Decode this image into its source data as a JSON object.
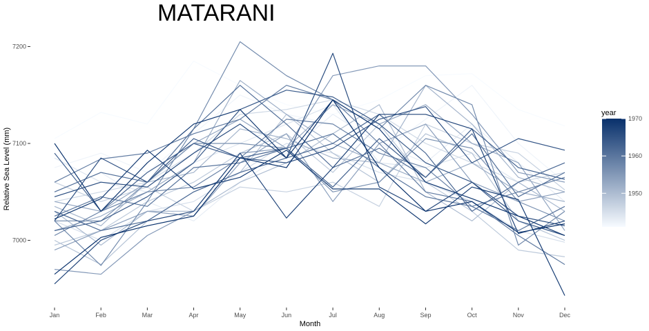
{
  "chart_data": {
    "type": "line",
    "title": "MATARANI",
    "xlabel": "Month",
    "ylabel": "Relative Sea Level (mm)",
    "categories": [
      "Jan",
      "Feb",
      "Mar",
      "Apr",
      "May",
      "Jun",
      "Jul",
      "Aug",
      "Sep",
      "Oct",
      "Nov",
      "Dec"
    ],
    "yticks": [
      7000,
      7100,
      7200
    ],
    "ylim": [
      6935,
      7225
    ],
    "grid": false,
    "legend": {
      "title": "year",
      "position": "right",
      "type": "colorbar",
      "range": [
        1941,
        1970
      ],
      "ticks": [
        1950,
        1960,
        1970
      ],
      "colors": [
        "#f7fbff",
        "#08306b"
      ]
    },
    "series": [
      {
        "year": 1941,
        "values": [
          7105,
          7132,
          7120,
          7185,
          7160,
          7140,
          7130,
          7145,
          7170,
          7172,
          7135,
          7118
        ]
      },
      {
        "year": 1942,
        "values": [
          7075,
          7090,
          7070,
          7110,
          7150,
          7130,
          7120,
          7090,
          7125,
          7160,
          7100,
          7060
        ]
      },
      {
        "year": 1943,
        "values": [
          7050,
          7070,
          7040,
          7020,
          7060,
          7090,
          7130,
          7100,
          7080,
          7120,
          7080,
          7040
        ]
      },
      {
        "year": 1944,
        "values": [
          7085,
          7060,
          7050,
          7080,
          7100,
          7120,
          7140,
          7080,
          7075,
          7090,
          7060,
          7030
        ]
      },
      {
        "year": 1945,
        "values": [
          7020,
          7000,
          7030,
          7040,
          7070,
          7100,
          7090,
          7070,
          7060,
          7040,
          7010,
          6998
        ]
      },
      {
        "year": 1946,
        "values": [
          7040,
          7050,
          7060,
          7090,
          7130,
          7135,
          7145,
          7130,
          7100,
          7080,
          7060,
          7070
        ]
      },
      {
        "year": 1947,
        "values": [
          7060,
          7040,
          7055,
          7030,
          7055,
          7050,
          7060,
          7035,
          7120,
          7100,
          7090,
          7052
        ]
      },
      {
        "year": 1948,
        "values": [
          6995,
          7010,
          7040,
          7060,
          7090,
          7110,
          7070,
          7120,
          7060,
          7030,
          6990,
          6983
        ]
      },
      {
        "year": 1949,
        "values": [
          7000,
          6975,
          7020,
          7050,
          7070,
          7130,
          7090,
          7060,
          7110,
          7090,
          7020,
          7000
        ]
      },
      {
        "year": 1950,
        "values": [
          7030,
          6995,
          7030,
          7030,
          7060,
          7080,
          7110,
          7140,
          7050,
          7020,
          7060,
          7030
        ]
      },
      {
        "year": 1951,
        "values": [
          7035,
          7015,
          7060,
          7070,
          7115,
          7105,
          7085,
          7080,
          7160,
          7120,
          7065,
          7050
        ]
      },
      {
        "year": 1952,
        "values": [
          7010,
          7025,
          7050,
          7080,
          7165,
          7130,
          7100,
          7080,
          7060,
          7080,
          7050,
          7040
        ]
      },
      {
        "year": 1953,
        "values": [
          7040,
          7030,
          7060,
          7100,
          7125,
          7095,
          7140,
          7120,
          7140,
          7100,
          7080,
          7010
        ]
      },
      {
        "year": 1954,
        "values": [
          6990,
          7010,
          7030,
          7025,
          7080,
          7110,
          7040,
          7100,
          7120,
          7060,
          7040,
          7050
        ]
      },
      {
        "year": 1955,
        "values": [
          6970,
          6965,
          7005,
          7030,
          7090,
          7095,
          7170,
          7180,
          7180,
          7130,
          7070,
          7060
        ]
      },
      {
        "year": 1956,
        "values": [
          7020,
          7020,
          7060,
          7100,
          7100,
          7095,
          7050,
          7060,
          7105,
          7095,
          7040,
          7020
        ]
      },
      {
        "year": 1957,
        "values": [
          7020,
          6974,
          7040,
          7115,
          7205,
          7170,
          7145,
          7115,
          7160,
          7140,
          6995,
          7030
        ]
      },
      {
        "year": 1958,
        "values": [
          7005,
          7030,
          7050,
          7055,
          7085,
          7125,
          7120,
          7090,
          7075,
          7035,
          7050,
          7065
        ]
      },
      {
        "year": 1959,
        "values": [
          7060,
          7084,
          7090,
          7110,
          7125,
          7160,
          7145,
          7100,
          7050,
          7040,
          7005,
          6975
        ]
      },
      {
        "year": 1960,
        "values": [
          7025,
          7045,
          7035,
          7075,
          7080,
          7095,
          7110,
          7075,
          7045,
          7035,
          7010,
          7035
        ]
      },
      {
        "year": 1961,
        "values": [
          7050,
          7070,
          7060,
          7115,
          7160,
          7120,
          7075,
          7095,
          7065,
          7110,
          7045,
          7070
        ]
      },
      {
        "year": 1962,
        "values": [
          7030,
          7010,
          7020,
          7050,
          7070,
          7085,
          7100,
          7130,
          7090,
          7030,
          7060,
          7080
        ]
      },
      {
        "year": 1963,
        "values": [
          7090,
          7030,
          7070,
          7100,
          7085,
          7095,
          7055,
          7105,
          7065,
          7115,
          7075,
          7063
        ]
      },
      {
        "year": 1964,
        "values": [
          7010,
          7020,
          7045,
          7080,
          7135,
          7155,
          7148,
          7120,
          7080,
          7060,
          7020,
          7005
        ]
      },
      {
        "year": 1965,
        "values": [
          7020,
          7085,
          7060,
          7105,
          7085,
          7080,
          7095,
          7125,
          7138,
          7080,
          7105,
          7093
        ]
      },
      {
        "year": 1966,
        "values": [
          7045,
          7060,
          7055,
          7090,
          7120,
          7085,
          7193,
          7055,
          7030,
          7060,
          7025,
          7015
        ]
      },
      {
        "year": 1967,
        "values": [
          6955,
          7000,
          7020,
          7030,
          7090,
          7023,
          7075,
          7130,
          7130,
          7115,
          7007,
          7020
        ]
      },
      {
        "year": 1968,
        "values": [
          7022,
          7043,
          7093,
          7053,
          7065,
          7093,
          7053,
          7053,
          7017,
          7055,
          7042,
          6943
        ]
      },
      {
        "year": 1969,
        "values": [
          7100,
          7030,
          7080,
          7120,
          7135,
          7085,
          7145,
          7115,
          7060,
          7043,
          7025,
          7005
        ]
      },
      {
        "year": 1970,
        "values": [
          6965,
          7003,
          7015,
          7025,
          7085,
          7075,
          7145,
          7075,
          7030,
          7040,
          7008,
          7017
        ]
      }
    ]
  }
}
